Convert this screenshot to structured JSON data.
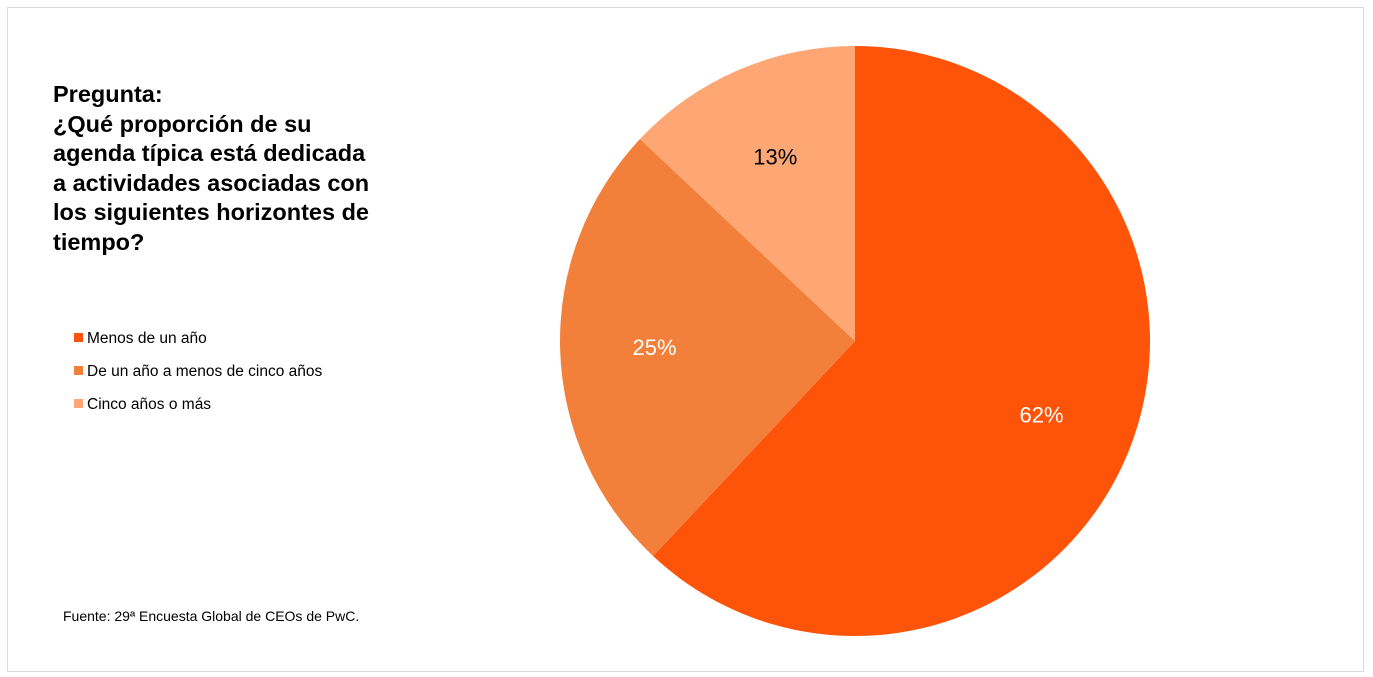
{
  "title_lines": [
    "Pregunta:",
    "¿Qué proporción de su",
    "agenda típica está dedicada",
    "a actividades asociadas con",
    "los siguientes horizontes de",
    "tiempo?"
  ],
  "source": "Fuente: 29ª Encuesta Global de CEOs de PwC.",
  "legend_position": "left",
  "chart_data": {
    "type": "pie",
    "title": "Pregunta: ¿Qué proporción de su agenda típica está dedicada a actividades asociadas con los siguientes horizontes de tiempo?",
    "categories": [
      "Menos de un año",
      "De un año a menos de cinco años",
      "Cinco años o más"
    ],
    "values": [
      62,
      25,
      13
    ],
    "data_labels": [
      "62%",
      "25%",
      "13%"
    ],
    "colors": [
      "#fe5409",
      "#f2803b",
      "#fea774"
    ],
    "label_colors": [
      "#ffffff",
      "#ffffff",
      "#000000"
    ],
    "start_angle_deg": 0,
    "direction": "clockwise"
  }
}
